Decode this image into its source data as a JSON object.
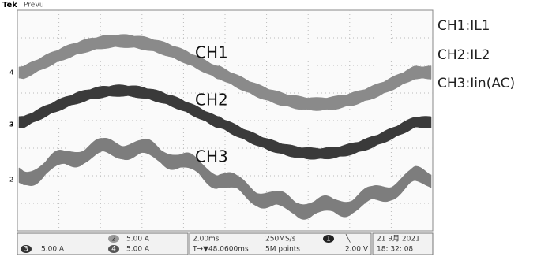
{
  "header": {
    "brand": "Tek",
    "mode": "PreVu"
  },
  "markers": [
    "4",
    "3",
    "2"
  ],
  "trace_labels": [
    "CH1",
    "CH2",
    "CH3"
  ],
  "legend": [
    "CH1:IL1",
    "CH2:IL2",
    "CH3:Iin(AC)"
  ],
  "status": {
    "ch2": {
      "id": "2",
      "scale": "5.00 A"
    },
    "ch3": {
      "id": "3",
      "scale": "5.00 A"
    },
    "ch4": {
      "id": "4",
      "scale": "5.00 A"
    },
    "timebase": "2.00ms",
    "sample_rate": "250MS/s",
    "trigger_pos": "T→▼48.0600ms",
    "record_length": "5M points",
    "trigger_ch": "1",
    "trigger_slope": "╲",
    "trigger_level": "2.00 V",
    "date": "21 9月  2021",
    "time": "18: 32: 08"
  }
}
